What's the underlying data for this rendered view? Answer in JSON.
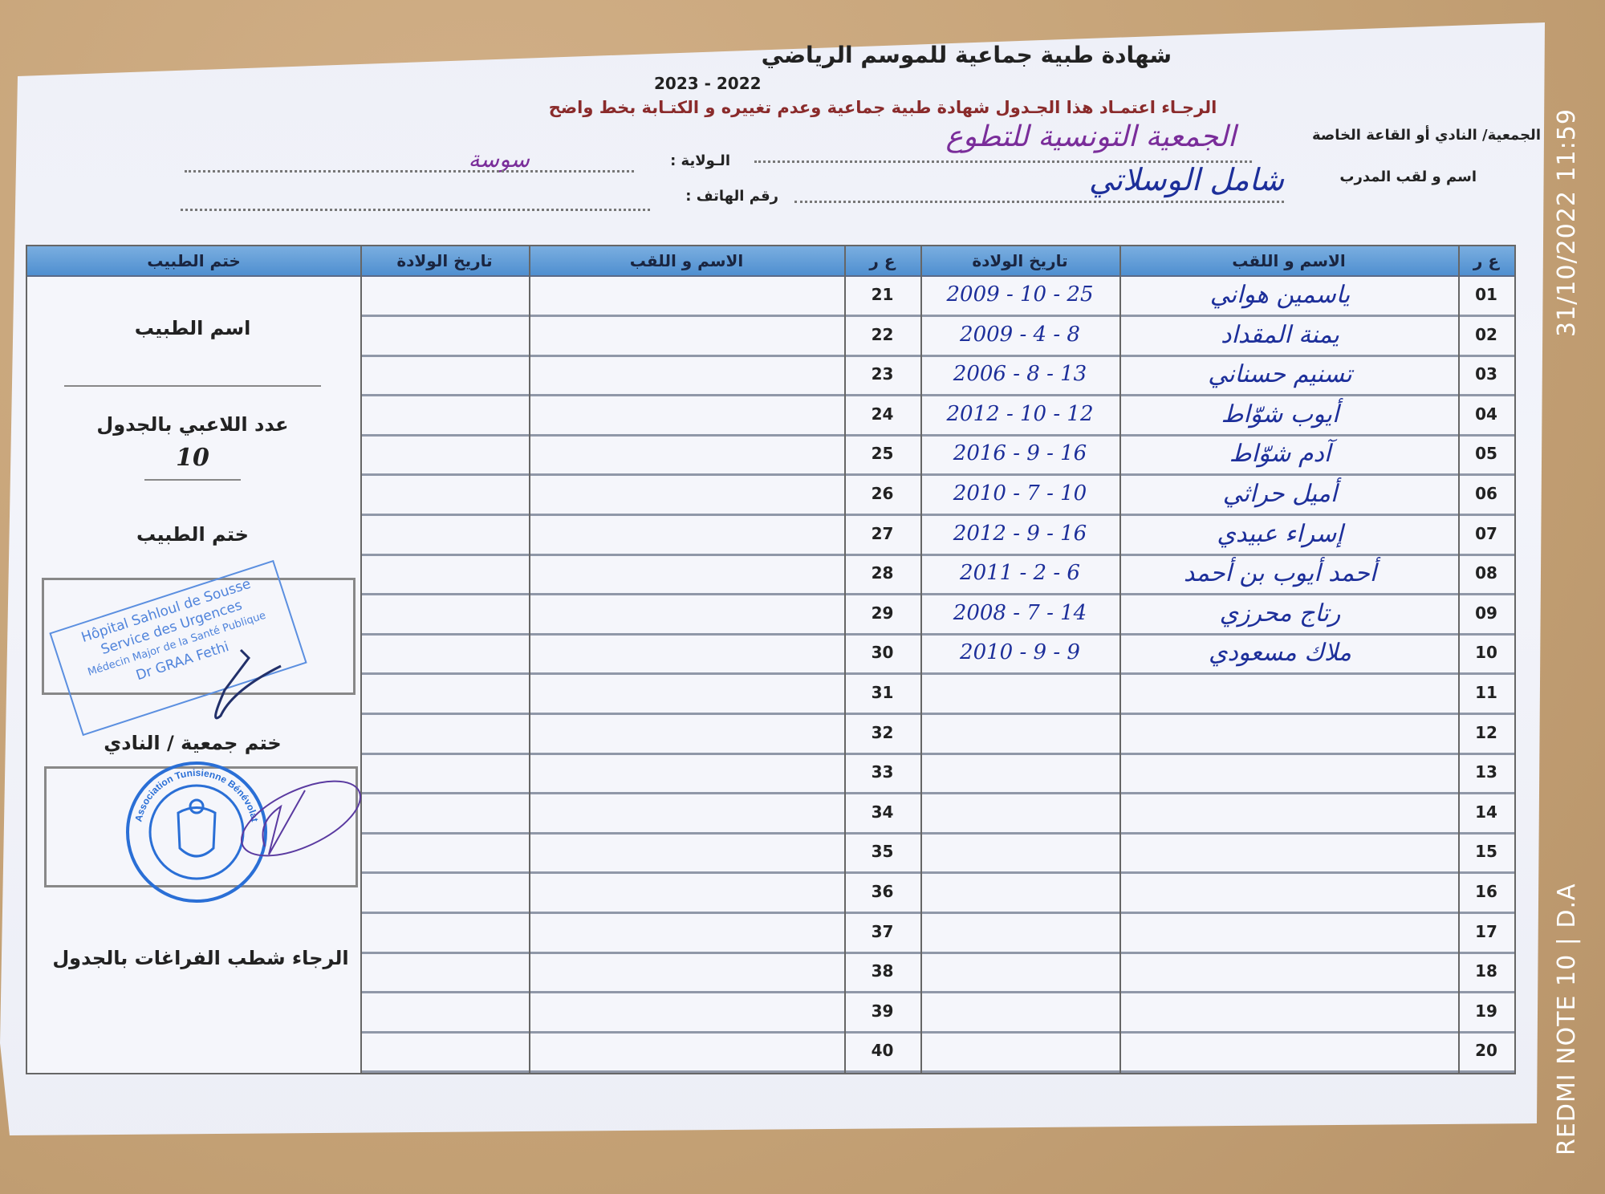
{
  "document": {
    "title": "شهادة طبية جماعية  للموسم الرياضي",
    "season": "2023 - 2022",
    "instruction": "الرجـاء اعتمـاد هذا الجـدول  شهادة طبية جماعية وعدم تغييره و الكتـابة بخط واضح",
    "fields": {
      "club_label": "الجمعية/ النادي أو القاعة الخاصة",
      "club_value": "الجمعية التونسية للتطوع",
      "state_label": "الـولاية :",
      "state_value": "سوسة",
      "coach_label": "اسم و لقب المدرب",
      "coach_value": "شامل الوسلاتي",
      "phone_label": "رقم الهاتف :",
      "phone_value": ""
    }
  },
  "table": {
    "headers": {
      "number": "ع ر",
      "name": "الاسم و اللقب",
      "birthdate": "تاريخ الولادة",
      "stamp": "ختم الطبيب"
    },
    "rows_right": [
      {
        "n": "01",
        "name": "ياسمين هواني",
        "date": "2009 - 10 - 25"
      },
      {
        "n": "02",
        "name": "يمنة المقداد",
        "date": "2009 - 4 - 8"
      },
      {
        "n": "03",
        "name": "تسنيم حسناني",
        "date": "2006 - 8 - 13"
      },
      {
        "n": "04",
        "name": "أيوب شوّاط",
        "date": "2012 - 10 - 12"
      },
      {
        "n": "05",
        "name": "آدم شوّاط",
        "date": "2016 - 9 - 16"
      },
      {
        "n": "06",
        "name": "أميل حراثي",
        "date": "2010 - 7 - 10"
      },
      {
        "n": "07",
        "name": "إسراء عبيدي",
        "date": "2012 - 9 - 16"
      },
      {
        "n": "08",
        "name": "أحمد أيوب بن أحمد",
        "date": "2011 - 2 - 6"
      },
      {
        "n": "09",
        "name": "رتاج محرزي",
        "date": "2008 - 7 - 14"
      },
      {
        "n": "10",
        "name": "ملاك مسعودي",
        "date": "2010 - 9 - 9"
      },
      {
        "n": "11",
        "name": "",
        "date": ""
      },
      {
        "n": "12",
        "name": "",
        "date": ""
      },
      {
        "n": "13",
        "name": "",
        "date": ""
      },
      {
        "n": "14",
        "name": "",
        "date": ""
      },
      {
        "n": "15",
        "name": "",
        "date": ""
      },
      {
        "n": "16",
        "name": "",
        "date": ""
      },
      {
        "n": "17",
        "name": "",
        "date": ""
      },
      {
        "n": "18",
        "name": "",
        "date": ""
      },
      {
        "n": "19",
        "name": "",
        "date": ""
      },
      {
        "n": "20",
        "name": "",
        "date": ""
      }
    ],
    "rows_left": [
      "21",
      "22",
      "23",
      "24",
      "25",
      "26",
      "27",
      "28",
      "29",
      "30",
      "31",
      "32",
      "33",
      "34",
      "35",
      "36",
      "37",
      "38",
      "39",
      "40"
    ]
  },
  "sidebar": {
    "doctor_name_label": "اسم الطبيب",
    "player_count_label": "عدد اللاعبي بالجدول",
    "player_count_value": "10",
    "doctor_stamp_label": "ختم الطبيب",
    "doctor_stamp_lines": [
      "Hôpital Sahloul de Sousse",
      "Service des Urgences",
      "Médecin Major de la Santé Publique",
      "Dr GRAA Fethi"
    ],
    "club_stamp_label": "ختم جمعية / النادي",
    "club_stamp_text": "Association Tunisienne Bénévolat",
    "footer_note": "الرجاء شطب  الفراغات بالجدول"
  },
  "watermark": {
    "datetime": "31/10/2022 11:59",
    "device": "REDMI NOTE 10 | D.A"
  },
  "colors": {
    "header_blue": "#5b97d6",
    "ink_blue": "#1d2f9a",
    "ink_purple": "#7a2d9a",
    "stamp_blue": "#2a6fd6",
    "background": "#c9a77c"
  }
}
